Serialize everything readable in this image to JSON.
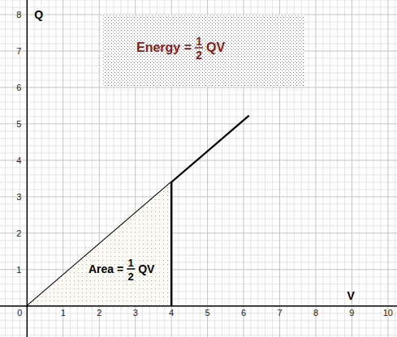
{
  "chart_data": {
    "type": "line",
    "x_label": "V",
    "y_label": "Q",
    "series": [
      {
        "type": "line",
        "x": [
          0,
          6.15
        ],
        "values": [
          0,
          5.23
        ],
        "color": "#000000"
      },
      {
        "type": "area",
        "x": [
          0,
          4
        ],
        "values": [
          0,
          3.4
        ],
        "color": "#000000"
      }
    ],
    "xlim": [
      -0.75,
      10.25
    ],
    "ylim": [
      -0.85,
      8.4
    ],
    "xticks": [
      0,
      1,
      2,
      3,
      4,
      5,
      6,
      7,
      8,
      9,
      10
    ],
    "yticks": [
      1,
      2,
      3,
      4,
      5,
      6,
      7,
      8
    ],
    "grid": true,
    "annotations": [
      {
        "text": "Energy =",
        "numerator": "1",
        "denominator": "2",
        "suffix": "QV",
        "color": "#8b1a1a"
      },
      {
        "text": "Area =",
        "numerator": "1",
        "denominator": "2",
        "suffix": "QV",
        "color": "#000000"
      }
    ]
  }
}
